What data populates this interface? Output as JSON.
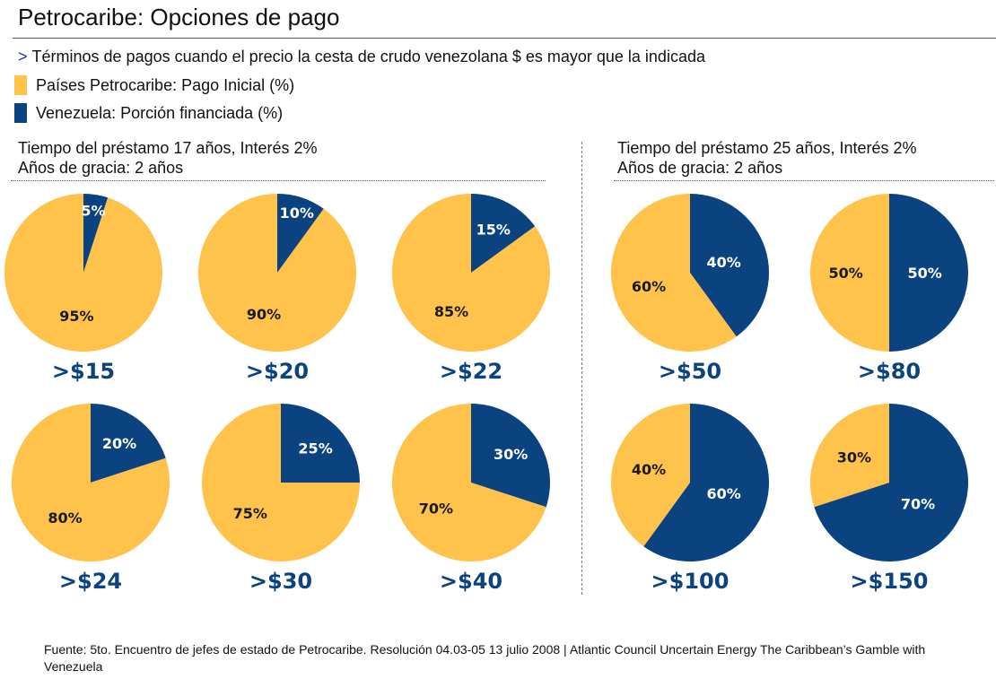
{
  "title": "Petrocaribe: Opciones de pago",
  "subtitle": {
    "bullet": ">",
    "text": "Términos de pagos cuando el precio  la cesta de crudo venezolana $  es mayor que la indicada"
  },
  "colors": {
    "inicial": "#FFC24A",
    "financiada": "#0B4380",
    "label_dark": "#1a1a1a",
    "label_light": "#ffffff",
    "price": "#0B4380"
  },
  "legend": [
    {
      "label": "Países Petrocaribe: Pago Inicial (%)",
      "color": "#FFC24A"
    },
    {
      "label": "Venezuela: Porción financiada (%)",
      "color": "#0B4380"
    }
  ],
  "groups": [
    {
      "line1": "Tiempo del préstamo 17 años, Interés 2%",
      "line2": "Años de gracia: 2 años"
    },
    {
      "line1": "Tiempo del préstamo 25 años, Interés 2%",
      "line2": "Años de gracia: 2 años"
    }
  ],
  "chart_data": {
    "type": "pie",
    "series_names": [
      "Países Petrocaribe: Pago Inicial (%)",
      "Venezuela: Porción financiada (%)"
    ],
    "pies": [
      {
        "group": 0,
        "price": ">$15",
        "inicial": 95,
        "financiada": 5,
        "inicial_label": "95%",
        "financiada_label": "5%"
      },
      {
        "group": 0,
        "price": ">$20",
        "inicial": 90,
        "financiada": 10,
        "inicial_label": "90%",
        "financiada_label": "10%"
      },
      {
        "group": 0,
        "price": ">$22",
        "inicial": 85,
        "financiada": 15,
        "inicial_label": "85%",
        "financiada_label": "15%"
      },
      {
        "group": 0,
        "price": ">$24",
        "inicial": 80,
        "financiada": 20,
        "inicial_label": "80%",
        "financiada_label": "20%"
      },
      {
        "group": 0,
        "price": ">$30",
        "inicial": 75,
        "financiada": 25,
        "inicial_label": "75%",
        "financiada_label": "25%"
      },
      {
        "group": 0,
        "price": ">$40",
        "inicial": 70,
        "financiada": 30,
        "inicial_label": "70%",
        "financiada_label": "30%"
      },
      {
        "group": 1,
        "price": ">$50",
        "inicial": 60,
        "financiada": 40,
        "inicial_label": "60%",
        "financiada_label": "40%"
      },
      {
        "group": 1,
        "price": ">$80",
        "inicial": 50,
        "financiada": 50,
        "inicial_label": "50%",
        "financiada_label": "50%"
      },
      {
        "group": 1,
        "price": ">$100",
        "inicial": 40,
        "financiada": 60,
        "inicial_label": "40%",
        "financiada_label": "60%"
      },
      {
        "group": 1,
        "price": ">$150",
        "inicial": 30,
        "financiada": 70,
        "inicial_label": "30%",
        "financiada_label": "70%"
      }
    ]
  },
  "source": "Fuente: 5to. Encuentro de jefes de estado de Petrocaribe. Resolución 04.03-05  13 julio 2008  | Atlantic Council Uncertain Energy The Caribbean’s Gamble with Venezuela"
}
